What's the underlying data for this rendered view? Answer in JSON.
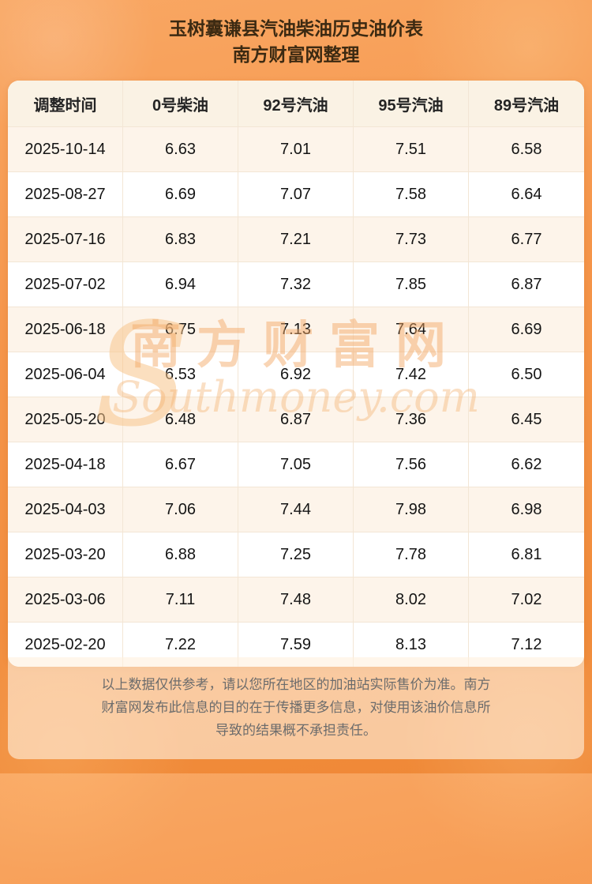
{
  "title": {
    "line1": "玉树囊谦县汽油柴油历史油价表",
    "line2": "南方财富网整理"
  },
  "table": {
    "headers": [
      "调整时间",
      "0号柴油",
      "92号汽油",
      "95号汽油",
      "89号汽油"
    ],
    "rows": [
      [
        "2025-10-14",
        "6.63",
        "7.01",
        "7.51",
        "6.58"
      ],
      [
        "2025-08-27",
        "6.69",
        "7.07",
        "7.58",
        "6.64"
      ],
      [
        "2025-07-16",
        "6.83",
        "7.21",
        "7.73",
        "6.77"
      ],
      [
        "2025-07-02",
        "6.94",
        "7.32",
        "7.85",
        "6.87"
      ],
      [
        "2025-06-18",
        "6.75",
        "7.13",
        "7.64",
        "6.69"
      ],
      [
        "2025-06-04",
        "6.53",
        "6.92",
        "7.42",
        "6.50"
      ],
      [
        "2025-05-20",
        "6.48",
        "6.87",
        "7.36",
        "6.45"
      ],
      [
        "2025-04-18",
        "6.67",
        "7.05",
        "7.56",
        "6.62"
      ],
      [
        "2025-04-03",
        "7.06",
        "7.44",
        "7.98",
        "6.98"
      ],
      [
        "2025-03-20",
        "6.88",
        "7.25",
        "7.78",
        "6.81"
      ],
      [
        "2025-03-06",
        "7.11",
        "7.48",
        "8.02",
        "7.02"
      ],
      [
        "2025-02-20",
        "7.22",
        "7.59",
        "8.13",
        "7.12"
      ]
    ]
  },
  "watermark": {
    "swoosh": "S",
    "cn": "南方财富网",
    "en": "Southmoney.com"
  },
  "footer": {
    "lines": [
      "以上数据仅供参考，请以您所在地区的加油站实际售价为准。南方",
      "财富网发布此信息的目的在于传播更多信息，对使用该油价信息所",
      "导致的结果概不承担责任。"
    ]
  },
  "colors": {
    "background_top": "#f9a763",
    "background_bottom": "#ef8836",
    "header_row_bg": "#faf2e4",
    "alt_row_bg": "#fdf4ea",
    "watermark": "#f2a864",
    "title_text": "#3c2a12"
  },
  "chart_data": {
    "type": "table",
    "title": "玉树囊谦县汽油柴油历史油价表",
    "subtitle": "南方财富网整理",
    "columns": [
      "调整时间",
      "0号柴油",
      "92号汽油",
      "95号汽油",
      "89号汽油"
    ],
    "categories": [
      "2025-10-14",
      "2025-08-27",
      "2025-07-16",
      "2025-07-02",
      "2025-06-18",
      "2025-06-04",
      "2025-05-20",
      "2025-04-18",
      "2025-04-03",
      "2025-03-20",
      "2025-03-06",
      "2025-02-20"
    ],
    "series": [
      {
        "name": "0号柴油",
        "values": [
          6.63,
          6.69,
          6.83,
          6.94,
          6.75,
          6.53,
          6.48,
          6.67,
          7.06,
          6.88,
          7.11,
          7.22
        ]
      },
      {
        "name": "92号汽油",
        "values": [
          7.01,
          7.07,
          7.21,
          7.32,
          7.13,
          6.92,
          6.87,
          7.05,
          7.44,
          7.25,
          7.48,
          7.59
        ]
      },
      {
        "name": "95号汽油",
        "values": [
          7.51,
          7.58,
          7.73,
          7.85,
          7.64,
          7.42,
          7.36,
          7.56,
          7.98,
          7.78,
          8.02,
          8.13
        ]
      },
      {
        "name": "89号汽油",
        "values": [
          6.58,
          6.64,
          6.77,
          6.87,
          6.69,
          6.5,
          6.45,
          6.62,
          6.98,
          6.81,
          7.02,
          7.12
        ]
      }
    ]
  }
}
